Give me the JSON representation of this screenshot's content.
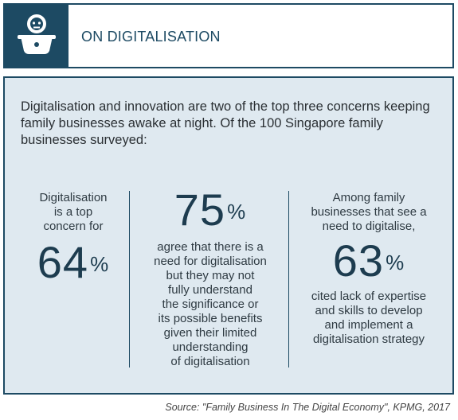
{
  "header": {
    "title": "ON DIGITALISATION",
    "icon": "family-figure-icon"
  },
  "intro": {
    "text": "Digitalisation and innovation are two of the top three concerns keeping family businesses awake at night. Of the 100 Singapore family businesses surveyed:"
  },
  "stats": [
    {
      "pre_lines": [
        "Digitalisation",
        "is a top",
        "concern for"
      ],
      "number": "64",
      "unit": "%",
      "post_lines": []
    },
    {
      "pre_lines": [],
      "number": "75",
      "unit": "%",
      "post_lines": [
        "agree that there is a",
        "need for digitalisation",
        "but they may not",
        "fully understand",
        "the significance or",
        "its possible benefits",
        "given their limited",
        "understanding",
        "of digitalisation"
      ]
    },
    {
      "pre_lines": [
        "Among family",
        "businesses that see a",
        "need to digitalise,"
      ],
      "number": "63",
      "unit": "%",
      "post_lines": [
        "cited lack of expertise",
        "and skills to develop",
        "and implement a",
        "digitalisation strategy"
      ]
    }
  ],
  "source": "Source: \"Family Business In The Digital Economy\", KPMG, 2017",
  "colors": {
    "navy": "#1d4a63",
    "panel": "#dfe9f0"
  }
}
